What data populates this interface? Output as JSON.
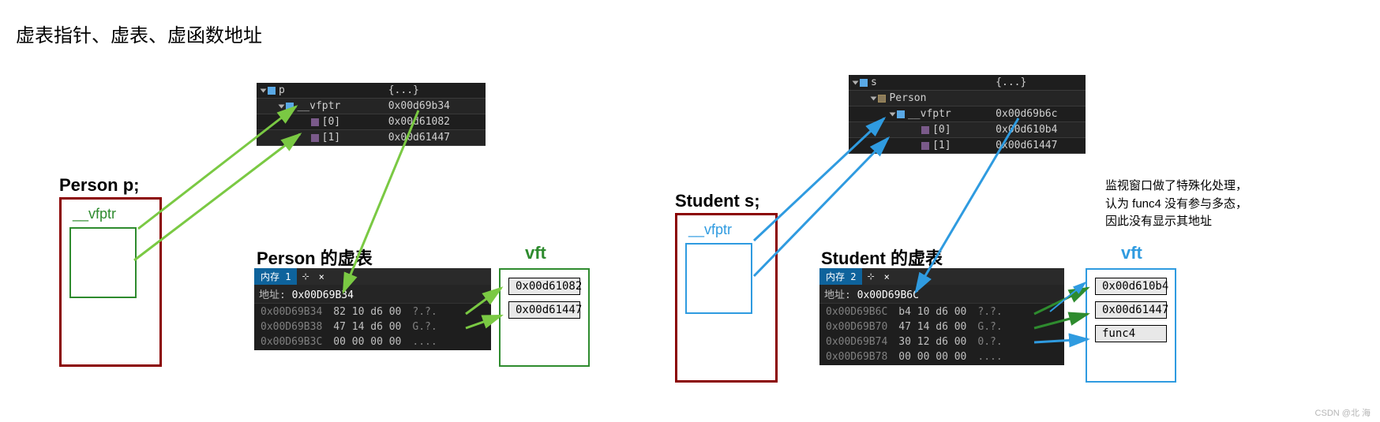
{
  "title": "虚表指针、虚表、虚函数地址",
  "colors": {
    "person_border": "#8b0000",
    "person_inner": "#2e8b2e",
    "person_vfptr_text": "#2e8b2e",
    "student_border": "#8b0000",
    "student_inner": "#2f9be0",
    "student_vfptr_text": "#2f9be0",
    "vft_person_box": "#2e8b2e",
    "vft_person_label": "#2e8b2e",
    "vft_student_box": "#2f9be0",
    "vft_student_label": "#2f9be0",
    "arrow_green": "#7ac943",
    "arrow_blue": "#2f9be0",
    "arrow_green2": "#2e8b2e",
    "watch_bg": "#1e1e1e",
    "tab_blue": "#0e639c"
  },
  "person": {
    "decl": "Person p;",
    "vfptr_label": "__vfptr",
    "watch": {
      "rows": [
        {
          "icon": "cube",
          "name": "p",
          "val": "{...}",
          "indent": 0,
          "tri": true
        },
        {
          "icon": "cube",
          "name": "__vfptr",
          "val": "0x00d69b34",
          "indent": 1,
          "tri": true
        },
        {
          "icon": "cube3",
          "name": "[0]",
          "val": "0x00d61082",
          "indent": 2,
          "tri": false
        },
        {
          "icon": "cube3",
          "name": "[1]",
          "val": "0x00d61447",
          "indent": 2,
          "tri": false
        }
      ]
    },
    "vtable_title": "Person 的虚表",
    "vft_label": "vft",
    "mem": {
      "tab": "内存 1",
      "addr_label": "地址:",
      "addr_value": "0x00D69B34",
      "rows": [
        {
          "a": "0x00D69B34",
          "h": "82 10 d6 00",
          "t": "?.?."
        },
        {
          "a": "0x00D69B38",
          "h": "47 14 d6 00",
          "t": "G.?."
        },
        {
          "a": "0x00D69B3C",
          "h": "00 00 00 00",
          "t": "...."
        }
      ]
    },
    "vft_items": [
      "0x00d61082",
      "0x00d61447"
    ]
  },
  "student": {
    "decl": "Student s;",
    "vfptr_label": "__vfptr",
    "watch": {
      "rows": [
        {
          "icon": "cube",
          "name": "s",
          "val": "{...}",
          "indent": 0,
          "tri": true
        },
        {
          "icon": "cube2",
          "name": "Person",
          "val": "",
          "indent": 1,
          "tri": true
        },
        {
          "icon": "cube",
          "name": "__vfptr",
          "val": "0x00d69b6c",
          "indent": 2,
          "tri": true
        },
        {
          "icon": "cube3",
          "name": "[0]",
          "val": "0x00d610b4",
          "indent": 3,
          "tri": false
        },
        {
          "icon": "cube3",
          "name": "[1]",
          "val": "0x00d61447",
          "indent": 3,
          "tri": false
        }
      ]
    },
    "vtable_title": "Student 的虚表",
    "vft_label": "vft",
    "mem": {
      "tab": "内存 2",
      "addr_label": "地址:",
      "addr_value": "0x00D69B6C",
      "rows": [
        {
          "a": "0x00D69B6C",
          "h": "b4 10 d6 00",
          "t": "?.?."
        },
        {
          "a": "0x00D69B70",
          "h": "47 14 d6 00",
          "t": "G.?."
        },
        {
          "a": "0x00D69B74",
          "h": "30 12 d6 00",
          "t": "0.?."
        },
        {
          "a": "0x00D69B78",
          "h": "00 00 00 00",
          "t": "...."
        }
      ]
    },
    "vft_items": [
      "0x00d610b4",
      "0x00d61447",
      "func4"
    ]
  },
  "note": {
    "l1": "监视窗口做了特殊化处理，",
    "l2": "认为 func4 没有参与多态，",
    "l3": "因此没有显示其地址"
  },
  "credit": "CSDN @北  海"
}
